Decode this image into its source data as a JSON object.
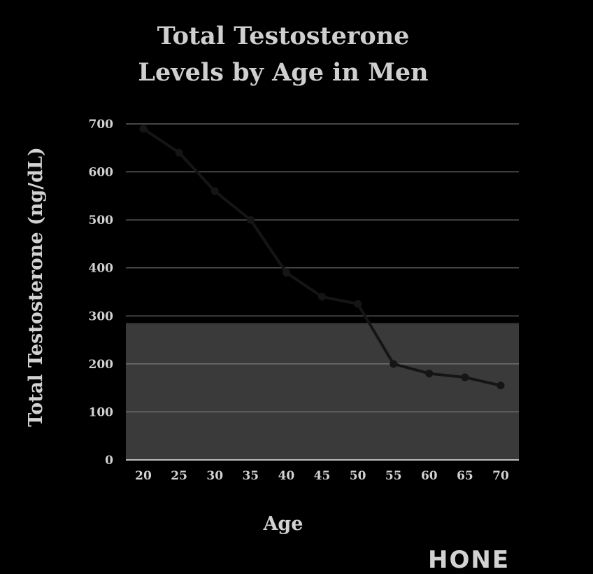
{
  "chart_data": {
    "type": "line",
    "title_line1": "Total Testosterone",
    "title_line2": "Levels by Age in Men",
    "xlabel": "Age",
    "ylabel": "Total Testosterone (ng/dL)",
    "x": [
      20,
      25,
      30,
      35,
      40,
      45,
      50,
      55,
      60,
      65,
      70
    ],
    "values": [
      690,
      640,
      560,
      500,
      390,
      340,
      325,
      200,
      180,
      172,
      155
    ],
    "ylim": [
      0,
      700
    ],
    "yticks": [
      0,
      100,
      200,
      300,
      400,
      500,
      600,
      700
    ],
    "shaded_band_max": 285,
    "grid": true,
    "colors": {
      "background": "#000000",
      "band": "#3a3a3a",
      "line": "#151515",
      "grid": "#8a8a8a",
      "text": "#d2d2d2"
    }
  },
  "watermark": "HONE"
}
